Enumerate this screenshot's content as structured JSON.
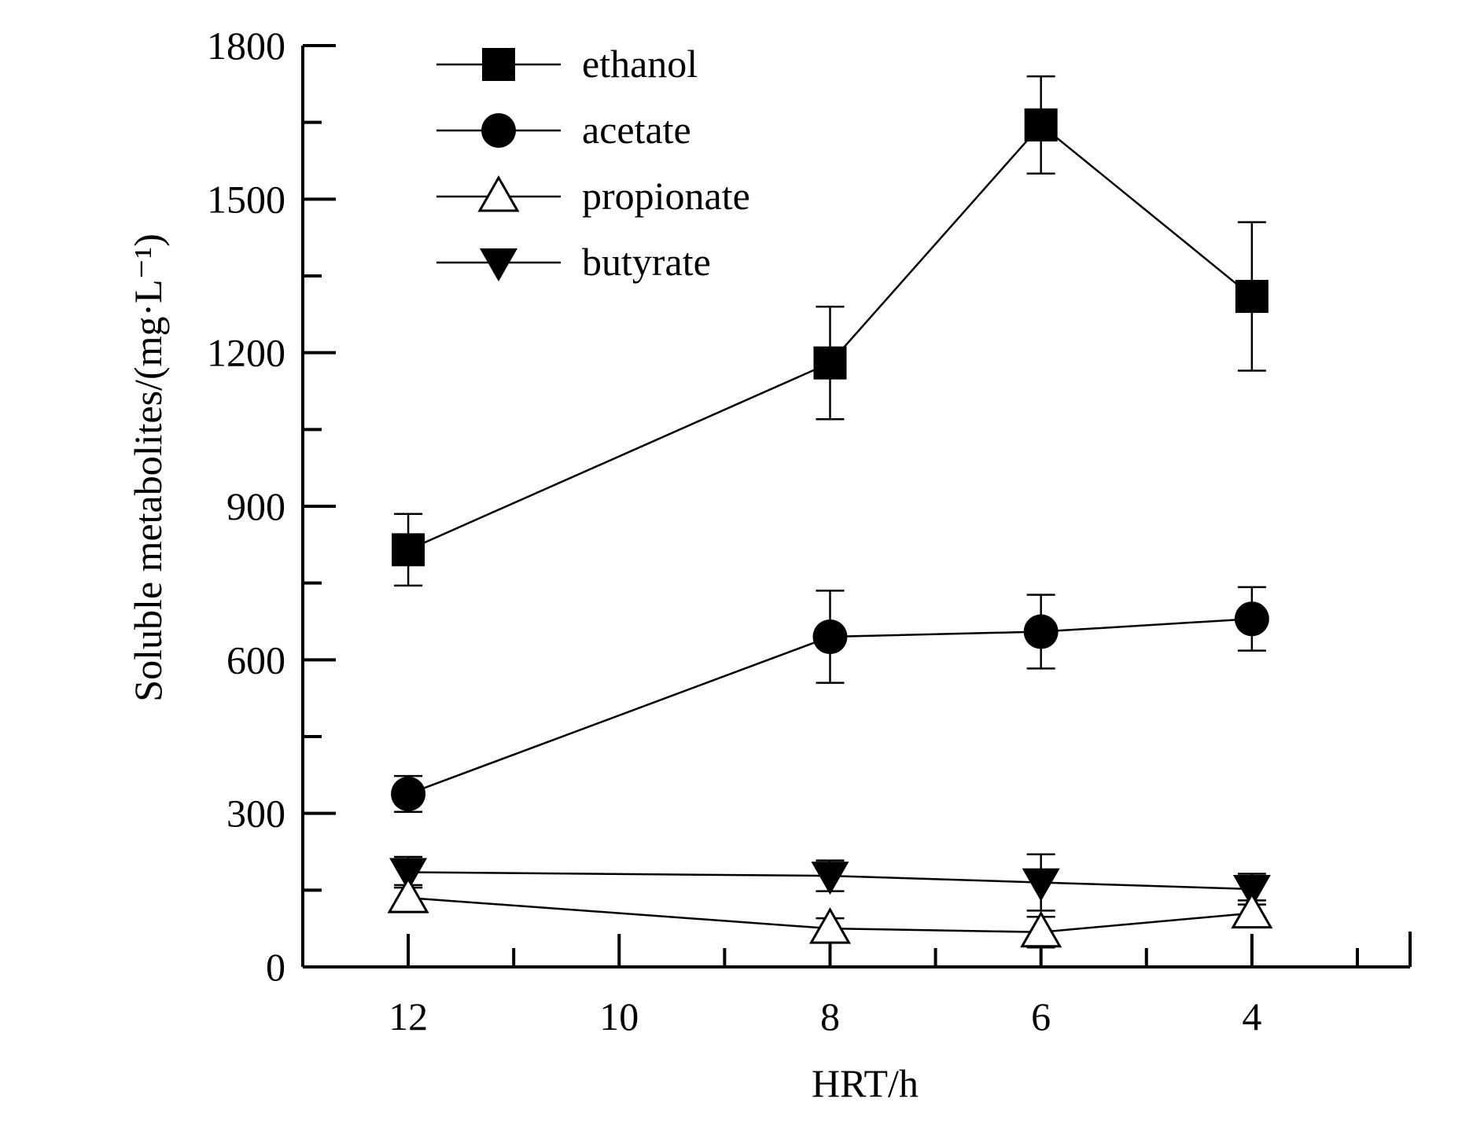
{
  "chart_data": {
    "type": "line",
    "title": "",
    "xlabel": "HRT/h",
    "ylabel": "Soluble metabolites/(mg·L⁻¹)",
    "x_ticks": [
      12,
      10,
      8,
      6,
      4
    ],
    "y_ticks": [
      0,
      300,
      600,
      900,
      1200,
      1500,
      1800
    ],
    "xlim": [
      13,
      2.5
    ],
    "ylim": [
      0,
      1800
    ],
    "x": [
      12,
      8,
      6,
      4
    ],
    "series": [
      {
        "name": "ethanol",
        "marker": "square-filled",
        "values": [
          815,
          1180,
          1645,
          1310
        ],
        "errors": [
          70,
          110,
          95,
          145
        ]
      },
      {
        "name": "acetate",
        "marker": "circle-filled",
        "values": [
          338,
          645,
          655,
          680
        ],
        "errors": [
          35,
          90,
          72,
          62
        ]
      },
      {
        "name": "propionate",
        "marker": "triangle-up-open",
        "values": [
          135,
          75,
          68,
          105
        ],
        "errors": [
          25,
          20,
          30,
          25
        ]
      },
      {
        "name": "butyrate",
        "marker": "triangle-down-filled",
        "values": [
          185,
          178,
          165,
          152
        ],
        "errors": [
          30,
          30,
          55,
          30
        ]
      }
    ],
    "legend_position": "top-left"
  }
}
